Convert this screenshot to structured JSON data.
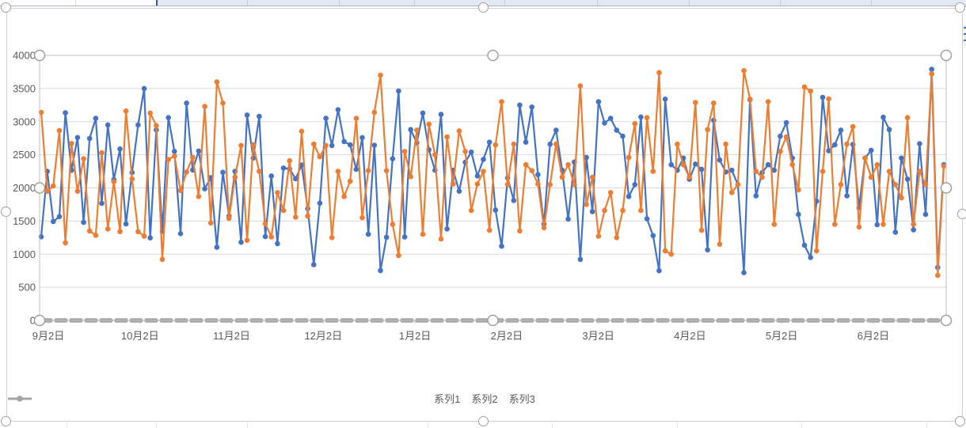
{
  "app": {
    "surface": "spreadsheet-with-embedded-chart",
    "selection_state": "chart and plot area selected (round resize handles visible)"
  },
  "colors": {
    "series1_blue": "#4472C4",
    "series2_orange": "#ED7D31",
    "series3_gray": "#A5A5A5",
    "gridline": "#D9D9D9",
    "axis_text": "#595959",
    "plot_border": "#BFBFBF",
    "handle_ring": "#A0A0A0",
    "worksheet_selection_fill": "#E2E9F2",
    "worksheet_selection_accent": "#2E5B9F"
  },
  "chart_data": {
    "type": "line",
    "title": "",
    "xlabel": "",
    "ylabel": "",
    "ylim": [
      0,
      4000
    ],
    "y_ticks": [
      0,
      500,
      1000,
      1500,
      2000,
      2500,
      3000,
      3500,
      4000
    ],
    "grid": "horizontal",
    "legend_position": "bottom",
    "x_tick_labels": [
      "9月2日",
      "10月2日",
      "11月2日",
      "12月2日",
      "1月2日",
      "2月2日",
      "3月2日",
      "4月2日",
      "5月2日",
      "6月2日"
    ],
    "x_note": "daily-style category axis, ~150 points from 9/2 to late 6, labels every month on the 2nd",
    "series": [
      {
        "name": "系列1",
        "color": "#4472C4",
        "marker": "circle",
        "values": [
          1262,
          2250,
          1493,
          1566,
          3133,
          2266,
          2761,
          1480,
          2745,
          3050,
          1766,
          2950,
          2124,
          2587,
          1455,
          2230,
          2950,
          3500,
          1245,
          2875,
          1344,
          3060,
          2550,
          1310,
          3280,
          2270,
          2557,
          1986,
          2154,
          1105,
          2235,
          1575,
          2250,
          1180,
          3100,
          2450,
          3080,
          1266,
          2180,
          1160,
          2300,
          2288,
          2137,
          2345,
          1686,
          840,
          1770,
          3050,
          2640,
          3180,
          2700,
          2650,
          2280,
          2760,
          1300,
          2645,
          752,
          1255,
          2440,
          3463,
          1258,
          2880,
          2680,
          3130,
          2576,
          2266,
          3110,
          1380,
          2266,
          1950,
          2388,
          2540,
          2180,
          2430,
          2690,
          1665,
          1120,
          2150,
          1810,
          3250,
          2690,
          3220,
          2200,
          1455,
          2660,
          2870,
          2266,
          1530,
          2390,
          920,
          2460,
          1640,
          3300,
          2980,
          3050,
          2870,
          2780,
          1870,
          2050,
          3070,
          1533,
          1280,
          750,
          3340,
          2350,
          2266,
          2450,
          2130,
          2360,
          2280,
          1065,
          3020,
          2420,
          2240,
          2266,
          2050,
          720,
          3330,
          1880,
          2230,
          2350,
          2266,
          2780,
          2985,
          2450,
          1600,
          1134,
          950,
          1800,
          3367,
          2560,
          2650,
          2870,
          1880,
          2655,
          1700,
          2450,
          2566,
          1445,
          3066,
          2880,
          1330,
          2450,
          2133,
          1366,
          2666,
          1600,
          3790,
          800,
          2350
        ]
      },
      {
        "name": "系列2",
        "color": "#ED7D31",
        "marker": "circle",
        "values": [
          3140,
          1950,
          2030,
          2866,
          1170,
          2670,
          1950,
          2440,
          1350,
          1285,
          2530,
          1380,
          2096,
          1340,
          3160,
          2135,
          1340,
          1270,
          3130,
          2940,
          920,
          2430,
          2480,
          1960,
          2240,
          2460,
          1870,
          3230,
          1470,
          3600,
          3280,
          1540,
          2160,
          2640,
          1210,
          2650,
          2250,
          1460,
          1260,
          1930,
          1660,
          2410,
          1560,
          2855,
          1575,
          2660,
          2470,
          2640,
          1250,
          2250,
          1870,
          2100,
          3050,
          1550,
          2260,
          3140,
          3700,
          2260,
          1450,
          980,
          2550,
          2170,
          2870,
          1300,
          2960,
          2500,
          1230,
          2770,
          2060,
          2860,
          2550,
          1660,
          2060,
          2250,
          1360,
          2650,
          3300,
          2050,
          2660,
          1350,
          2350,
          2260,
          2060,
          1400,
          2050,
          2660,
          2160,
          2350,
          2050,
          3540,
          1750,
          2160,
          1270,
          1660,
          1930,
          1250,
          1660,
          2460,
          2970,
          1660,
          3060,
          2250,
          3740,
          1050,
          1000,
          2660,
          2350,
          2160,
          3290,
          1360,
          2880,
          3280,
          1150,
          2660,
          1930,
          2050,
          3770,
          3340,
          2250,
          2160,
          3300,
          1450,
          2550,
          2770,
          2350,
          1970,
          3522,
          3460,
          1050,
          2250,
          3343,
          1450,
          2050,
          2660,
          2925,
          1410,
          2450,
          2160,
          2350,
          1450,
          2250,
          2050,
          1850,
          3060,
          1450,
          2250,
          2050,
          3720,
          680,
          2330
        ]
      },
      {
        "name": "系列3",
        "color": "#A5A5A5",
        "marker": "dash",
        "line_style": "dashed",
        "constant": 0,
        "count": 150
      }
    ]
  }
}
